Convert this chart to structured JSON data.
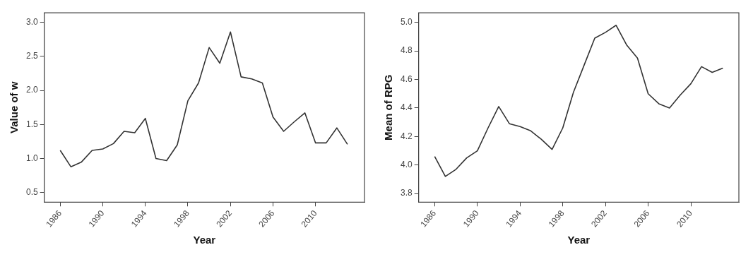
{
  "chart_data": [
    {
      "type": "line",
      "xlabel": "Year",
      "ylabel": "Value of w",
      "x": [
        1986,
        1987,
        1988,
        1989,
        1990,
        1991,
        1992,
        1993,
        1994,
        1995,
        1996,
        1997,
        1998,
        1999,
        2000,
        2001,
        2002,
        2003,
        2004,
        2005,
        2006,
        2007,
        2008,
        2009,
        2010,
        2011,
        2012,
        2013
      ],
      "series": [
        {
          "color": "#333333",
          "values": [
            1.12,
            0.88,
            0.95,
            1.12,
            1.14,
            1.22,
            1.4,
            1.38,
            1.59,
            1.0,
            0.97,
            1.2,
            1.85,
            2.11,
            2.63,
            2.4,
            2.86,
            2.2,
            2.17,
            2.11,
            1.61,
            1.4,
            1.54,
            1.67,
            1.23,
            1.23,
            1.45,
            1.21
          ]
        }
      ],
      "xlim": [
        1984.5,
        2014.6
      ],
      "xticks": [
        1986,
        1990,
        1994,
        1998,
        2002,
        2006,
        2010
      ],
      "ylim": [
        0.36,
        3.14
      ],
      "yticks": [
        {
          "value": 0.5,
          "label": "0.5"
        },
        {
          "value": 1,
          "label": "1.0"
        },
        {
          "value": 1.5,
          "label": "1.5"
        },
        {
          "value": 2,
          "label": "2.0"
        },
        {
          "value": 2.5,
          "label": "2.5"
        },
        {
          "value": 3,
          "label": "3.0"
        }
      ],
      "grid": false,
      "legend": false,
      "marker": "none",
      "line_style": "solid"
    },
    {
      "type": "line",
      "xlabel": "Year",
      "ylabel": "Mean of RPG",
      "x": [
        1986,
        1987,
        1988,
        1989,
        1990,
        1991,
        1992,
        1993,
        1994,
        1995,
        1996,
        1997,
        1998,
        1999,
        2000,
        2001,
        2002,
        2003,
        2004,
        2005,
        2006,
        2007,
        2008,
        2009,
        2010,
        2011,
        2012,
        2013
      ],
      "series": [
        {
          "color": "#333333",
          "values": [
            4.06,
            3.92,
            3.97,
            4.05,
            4.1,
            4.26,
            4.41,
            4.29,
            4.27,
            4.24,
            4.18,
            4.11,
            4.26,
            4.51,
            4.7,
            4.89,
            4.93,
            4.98,
            4.84,
            4.75,
            4.5,
            4.43,
            4.4,
            4.49,
            4.57,
            4.69,
            4.65,
            4.68
          ]
        }
      ],
      "xlim": [
        1984.5,
        2014.5
      ],
      "xticks": [
        1986,
        1990,
        1994,
        1998,
        2002,
        2006,
        2010
      ],
      "ylim": [
        3.74,
        5.067
      ],
      "yticks": [
        {
          "value": 3.8,
          "label": "3.8"
        },
        {
          "value": 4,
          "label": "4.0"
        },
        {
          "value": 4.2,
          "label": "4.2"
        },
        {
          "value": 4.4,
          "label": "4.4"
        },
        {
          "value": 4.6,
          "label": "4.6"
        },
        {
          "value": 4.8,
          "label": "4.8"
        },
        {
          "value": 5,
          "label": "5.0"
        }
      ],
      "grid": false,
      "legend": false,
      "marker": "none",
      "line_style": "solid"
    }
  ]
}
